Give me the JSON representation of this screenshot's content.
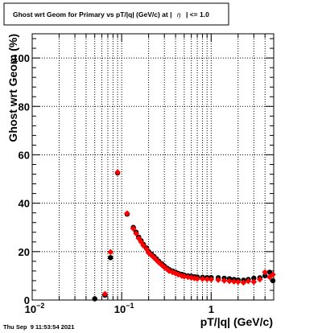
{
  "title": "Ghost wrt Geom for Primary vs pT/|q| (GeV/c) at |",
  "title_eta": "η",
  "title_suffix": "| <= 1.0",
  "timestamp": "Thu Sep  9 11:53:54 2021",
  "colors": {
    "series_black": "#000000",
    "series_red": "#ff0000"
  },
  "chart_data": {
    "type": "scatter",
    "xlabel": "pT/|q| (GeV/c)",
    "ylabel": "Ghost wrt Geom (%)",
    "xscale": "log",
    "xlim": [
      0.01,
      5
    ],
    "ylim": [
      0,
      110
    ],
    "grid": true,
    "x_ticks": [
      {
        "value": 0.01,
        "label": "10",
        "sup": "−2"
      },
      {
        "value": 0.1,
        "label": "10",
        "sup": "−1"
      },
      {
        "value": 1,
        "label": "1",
        "sup": ""
      }
    ],
    "y_ticks": [
      0,
      20,
      40,
      60,
      80,
      100
    ],
    "series": [
      {
        "marker": "circle",
        "color": "#000000",
        "points": [
          [
            0.05,
            0.5
          ],
          [
            0.065,
            2
          ],
          [
            0.075,
            17.5
          ],
          [
            0.09,
            52.5
          ],
          [
            0.115,
            35.5
          ],
          [
            0.135,
            30
          ],
          [
            0.145,
            28
          ],
          [
            0.155,
            26
          ],
          [
            0.165,
            24.5
          ],
          [
            0.175,
            23
          ],
          [
            0.19,
            21.5
          ],
          [
            0.2,
            20
          ],
          [
            0.215,
            19
          ],
          [
            0.23,
            18
          ],
          [
            0.245,
            17
          ],
          [
            0.26,
            16
          ],
          [
            0.28,
            15
          ],
          [
            0.3,
            14
          ],
          [
            0.32,
            13.2
          ],
          [
            0.34,
            12.6
          ],
          [
            0.37,
            12
          ],
          [
            0.4,
            11.5
          ],
          [
            0.43,
            11
          ],
          [
            0.47,
            10.6
          ],
          [
            0.5,
            10.3
          ],
          [
            0.55,
            10
          ],
          [
            0.6,
            9.8
          ],
          [
            0.65,
            9.6
          ],
          [
            0.7,
            9.5
          ],
          [
            0.8,
            9.4
          ],
          [
            0.9,
            9.3
          ],
          [
            1.0,
            9.3
          ],
          [
            1.2,
            9.2
          ],
          [
            1.4,
            9
          ],
          [
            1.6,
            8.8
          ],
          [
            1.8,
            8.5
          ],
          [
            2.0,
            8.3
          ],
          [
            2.3,
            8.2
          ],
          [
            2.6,
            8.5
          ],
          [
            3.0,
            9
          ],
          [
            3.5,
            9.2
          ],
          [
            4.0,
            10
          ],
          [
            4.5,
            11.5
          ],
          [
            4.9,
            8
          ]
        ]
      },
      {
        "marker": "diamond",
        "color": "#ff0000",
        "points": [
          [
            0.065,
            2.5
          ],
          [
            0.075,
            19.8
          ],
          [
            0.09,
            52.8
          ],
          [
            0.115,
            35.8
          ],
          [
            0.135,
            29.5
          ],
          [
            0.145,
            27.5
          ],
          [
            0.155,
            25.5
          ],
          [
            0.165,
            24
          ],
          [
            0.175,
            22.5
          ],
          [
            0.19,
            21
          ],
          [
            0.2,
            19.5
          ],
          [
            0.215,
            18.5
          ],
          [
            0.23,
            17.5
          ],
          [
            0.245,
            16.5
          ],
          [
            0.26,
            15.5
          ],
          [
            0.28,
            14.5
          ],
          [
            0.3,
            13.5
          ],
          [
            0.32,
            12.8
          ],
          [
            0.34,
            12
          ],
          [
            0.37,
            11.5
          ],
          [
            0.4,
            11
          ],
          [
            0.43,
            10.5
          ],
          [
            0.47,
            10
          ],
          [
            0.5,
            9.7
          ],
          [
            0.55,
            9.5
          ],
          [
            0.6,
            9.2
          ],
          [
            0.65,
            9
          ],
          [
            0.7,
            8.8
          ],
          [
            0.8,
            8.7
          ],
          [
            0.9,
            8.6
          ],
          [
            1.0,
            8.5
          ],
          [
            1.2,
            8.3
          ],
          [
            1.4,
            8
          ],
          [
            1.6,
            7.8
          ],
          [
            1.8,
            7.6
          ],
          [
            2.0,
            7.5
          ],
          [
            2.3,
            7.2
          ],
          [
            2.6,
            7.8
          ],
          [
            3.0,
            7.5
          ],
          [
            3.5,
            8.5
          ],
          [
            4.0,
            11.5
          ],
          [
            4.5,
            9.5
          ],
          [
            4.9,
            10.5
          ]
        ]
      }
    ]
  }
}
